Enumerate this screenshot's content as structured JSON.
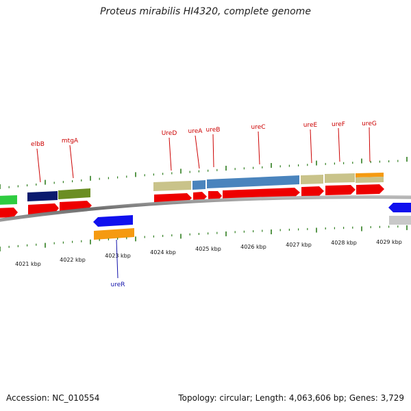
{
  "title": "Proteus mirabilis HI4320, complete genome",
  "footer": {
    "accession": "Accession: NC_010554",
    "summary": "Topology: circular; Length: 4,063,606 bp; Genes: 3,729"
  },
  "scale": {
    "labels": [
      "4021 kbp",
      "4022 kbp",
      "4023 kbp",
      "4024 kbp",
      "4025 kbp",
      "4026 kbp",
      "4027 kbp",
      "4028 kbp",
      "4029 kbp"
    ]
  },
  "gene_labels": {
    "elbB": "elbB",
    "mtgA": "mtgA",
    "UreD": "UreD",
    "ureA": "ureA",
    "ureB": "ureB",
    "ureC": "ureC",
    "ureE": "ureE",
    "ureF": "ureF",
    "ureG": "ureG",
    "ureR": "ureR"
  },
  "colors": {
    "forward_cds": "#ee0000",
    "reverse_cds": "#1010ee",
    "label_forward": "#cc0000",
    "label_reverse": "#1010aa",
    "backbone": "#808080",
    "tick": "#2e7d1e",
    "cog_navy": "#0a1a6e",
    "cog_olive": "#6b8e23",
    "cog_khaki": "#c9c38a",
    "cog_steel": "#4a84bd",
    "cog_orange": "#f59a10",
    "cog_green": "#2ecc40",
    "cog_grey": "#c8c8c8"
  }
}
